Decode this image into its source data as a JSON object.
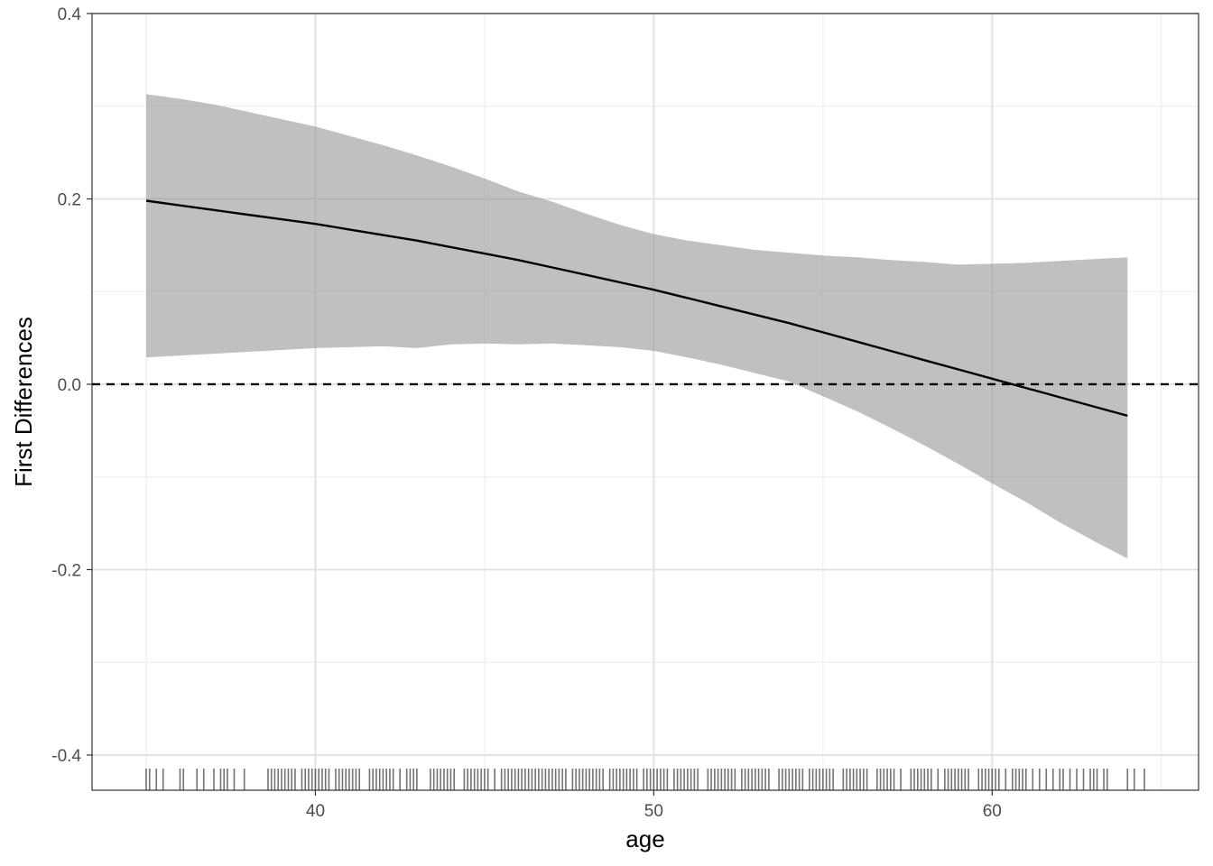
{
  "chart_data": {
    "type": "line",
    "title": "",
    "xlabel": "age",
    "ylabel": "First Differences",
    "xlim": [
      33.4,
      66.1
    ],
    "ylim": [
      -0.438,
      0.4
    ],
    "x_ticks": [
      40,
      50,
      60
    ],
    "x_tick_labels": [
      "40",
      "50",
      "60"
    ],
    "y_ticks": [
      -0.4,
      -0.2,
      0.0,
      0.2,
      0.4
    ],
    "y_tick_labels": [
      "-0.4",
      "-0.2",
      "0.0",
      "0.2",
      "0.4"
    ],
    "grid": true,
    "reference_line": {
      "y": 0.0,
      "style": "dashed"
    },
    "series": [
      {
        "x": [
          35,
          36,
          37,
          38,
          39,
          40,
          41,
          42,
          43,
          44,
          45,
          46,
          47,
          48,
          49,
          50,
          51,
          52,
          53,
          54,
          55,
          56,
          57,
          58,
          59,
          60,
          61,
          62,
          63,
          64
        ],
        "y": [
          0.198,
          0.193,
          0.188,
          0.183,
          0.178,
          0.173,
          0.167,
          0.161,
          0.155,
          0.148,
          0.141,
          0.134,
          0.126,
          0.118,
          0.11,
          0.102,
          0.093,
          0.084,
          0.075,
          0.066,
          0.056,
          0.046,
          0.036,
          0.026,
          0.016,
          0.006,
          -0.004,
          -0.014,
          -0.024,
          -0.034
        ]
      }
    ],
    "ribbon": {
      "x": [
        35,
        36,
        37,
        38,
        39,
        40,
        41,
        42,
        43,
        44,
        45,
        46,
        47,
        48,
        49,
        50,
        51,
        52,
        53,
        54,
        55,
        56,
        57,
        58,
        59,
        60,
        61,
        62,
        63,
        64
      ],
      "upper": [
        0.313,
        0.308,
        0.302,
        0.294,
        0.286,
        0.278,
        0.268,
        0.258,
        0.247,
        0.235,
        0.222,
        0.208,
        0.197,
        0.184,
        0.172,
        0.162,
        0.155,
        0.15,
        0.145,
        0.142,
        0.139,
        0.137,
        0.134,
        0.132,
        0.129,
        0.13,
        0.131,
        0.133,
        0.135,
        0.137
      ],
      "lower": [
        0.029,
        0.031,
        0.033,
        0.035,
        0.037,
        0.039,
        0.04,
        0.041,
        0.039,
        0.043,
        0.044,
        0.043,
        0.044,
        0.042,
        0.04,
        0.036,
        0.029,
        0.021,
        0.012,
        0.003,
        -0.013,
        -0.029,
        -0.047,
        -0.066,
        -0.086,
        -0.107,
        -0.127,
        -0.149,
        -0.169,
        -0.188
      ]
    },
    "rug_x": [
      35.0,
      35.1,
      35.3,
      35.5,
      36.0,
      36.1,
      36.5,
      36.7,
      37.0,
      37.2,
      37.3,
      37.4,
      37.6,
      37.9,
      38.6,
      38.7,
      38.8,
      38.9,
      39.0,
      39.1,
      39.2,
      39.3,
      39.4,
      39.6,
      39.7,
      39.8,
      39.9,
      40.0,
      40.1,
      40.2,
      40.3,
      40.4,
      40.6,
      40.7,
      40.8,
      40.9,
      41.0,
      41.1,
      41.2,
      41.3,
      41.6,
      41.7,
      41.8,
      41.9,
      42.0,
      42.1,
      42.2,
      42.3,
      42.5,
      42.7,
      42.8,
      42.9,
      43.0,
      43.4,
      43.5,
      43.6,
      43.7,
      43.8,
      43.9,
      44.0,
      44.1,
      44.4,
      44.5,
      44.6,
      44.7,
      44.8,
      44.9,
      45.0,
      45.1,
      45.3,
      45.5,
      45.6,
      45.7,
      45.8,
      45.9,
      46.0,
      46.1,
      46.2,
      46.3,
      46.4,
      46.5,
      46.6,
      46.7,
      46.8,
      46.9,
      47.0,
      47.1,
      47.2,
      47.3,
      47.4,
      47.6,
      47.7,
      47.8,
      47.9,
      48.0,
      48.1,
      48.2,
      48.3,
      48.4,
      48.5,
      48.7,
      48.8,
      48.9,
      49.0,
      49.1,
      49.2,
      49.3,
      49.4,
      49.5,
      49.7,
      49.8,
      49.9,
      50.0,
      50.1,
      50.2,
      50.3,
      50.4,
      50.6,
      50.7,
      50.8,
      50.9,
      51.0,
      51.1,
      51.2,
      51.3,
      51.6,
      51.7,
      51.8,
      51.9,
      52.0,
      52.1,
      52.2,
      52.3,
      52.4,
      52.6,
      52.7,
      52.8,
      52.9,
      53.0,
      53.1,
      53.2,
      53.3,
      53.4,
      53.7,
      53.8,
      53.9,
      54.0,
      54.1,
      54.2,
      54.3,
      54.4,
      54.6,
      54.7,
      54.8,
      54.9,
      55.0,
      55.1,
      55.2,
      55.3,
      55.6,
      55.7,
      55.8,
      55.9,
      56.0,
      56.1,
      56.2,
      56.3,
      56.6,
      56.7,
      56.8,
      56.9,
      57.0,
      57.1,
      57.3,
      57.6,
      57.7,
      57.8,
      57.9,
      58.0,
      58.1,
      58.2,
      58.4,
      58.6,
      58.7,
      58.8,
      58.9,
      59.0,
      59.1,
      59.2,
      59.3,
      59.6,
      59.7,
      59.8,
      59.9,
      60.0,
      60.1,
      60.2,
      60.4,
      60.6,
      60.7,
      60.8,
      60.9,
      61.0,
      61.2,
      61.4,
      61.6,
      61.8,
      62.0,
      62.1,
      62.3,
      62.5,
      62.7,
      62.9,
      63.0,
      63.1,
      63.3,
      63.4,
      64.0,
      64.2,
      64.5
    ]
  }
}
